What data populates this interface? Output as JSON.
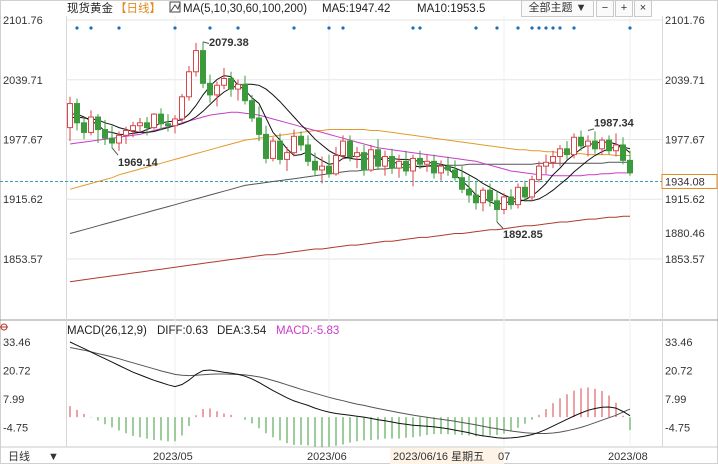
{
  "header": {
    "title": "现货黄金",
    "period": "【日线】",
    "ma_label": "MA(5,10,30,60,100,200)",
    "ma5": "MA5:1947.42",
    "ma10": "MA10:1953.5",
    "theme_button": "全部主题",
    "theme_arrow": "▼"
  },
  "macd_header": {
    "label": "MACD(26,12,9)",
    "diff": "DIFF:0.63",
    "dea": "DEA:3.54",
    "macd": "MACD:-5.83"
  },
  "footer": {
    "period": "日线",
    "cursor_date": "2023/06/16 星期五"
  },
  "colors": {
    "up": "#d9464a",
    "down": "#3b9a3b",
    "ma5": "#111111",
    "ma10": "#111111",
    "ma30": "#c93cc9",
    "ma60": "#e39a2a",
    "ma100": "#555555",
    "ma200": "#b03a2e",
    "dash": "#3aa0b0",
    "current": "#e08a1e",
    "grid": "#e5e5e5"
  },
  "chart_data": [
    {
      "type": "candlestick",
      "name": "price",
      "ylim": [
        1853.57,
        2101.76
      ],
      "yticks": [
        "2101.76",
        "2039.71",
        "1977.67",
        "1915.62",
        "1853.57"
      ],
      "xticks": [
        "2023/05",
        "2023/06",
        "07",
        "2023/08"
      ],
      "current_price": "1934.08",
      "ma200_value": "1880.46",
      "annotations": {
        "high": "2079.38",
        "low1": "1969.14",
        "low2": "1892.85",
        "high2": "1987.34"
      },
      "ohlc": [
        [
          1990,
          2022,
          1976,
          2015
        ],
        [
          2015,
          2020,
          1987,
          1995
        ],
        [
          1995,
          2001,
          1978,
          1985
        ],
        [
          1985,
          2008,
          1982,
          2001
        ],
        [
          2001,
          2004,
          1974,
          1988
        ],
        [
          1988,
          1998,
          1972,
          1979
        ],
        [
          1979,
          1992,
          1969,
          1974
        ],
        [
          1974,
          1986,
          1966,
          1982
        ],
        [
          1982,
          1991,
          1973,
          1987
        ],
        [
          1987,
          1996,
          1980,
          1992
        ],
        [
          1992,
          2000,
          1986,
          1995
        ],
        [
          1995,
          2001,
          1982,
          1990
        ],
        [
          1990,
          2005,
          1988,
          2004
        ],
        [
          2004,
          2010,
          1987,
          1994
        ],
        [
          1994,
          2004,
          1986,
          1992
        ],
        [
          1992,
          2003,
          1984,
          1999
        ],
        [
          1999,
          2025,
          1996,
          2022
        ],
        [
          2022,
          2054,
          2018,
          2048
        ],
        [
          2048,
          2078,
          2043,
          2070
        ],
        [
          2070,
          2079,
          2031,
          2036
        ],
        [
          2036,
          2045,
          2016,
          2024
        ],
        [
          2024,
          2038,
          2012,
          2034
        ],
        [
          2034,
          2052,
          2030,
          2041
        ],
        [
          2041,
          2048,
          2022,
          2030
        ],
        [
          2030,
          2040,
          2018,
          2035
        ],
        [
          2035,
          2044,
          2014,
          2018
        ],
        [
          2018,
          2024,
          1996,
          2000
        ],
        [
          2000,
          2012,
          1976,
          1983
        ],
        [
          1983,
          1992,
          1953,
          1958
        ],
        [
          1958,
          1980,
          1955,
          1976
        ],
        [
          1976,
          1984,
          1952,
          1957
        ],
        [
          1957,
          1970,
          1945,
          1964
        ],
        [
          1964,
          1988,
          1960,
          1981
        ],
        [
          1981,
          1986,
          1966,
          1972
        ],
        [
          1972,
          1982,
          1950,
          1955
        ],
        [
          1955,
          1964,
          1940,
          1946
        ],
        [
          1946,
          1960,
          1932,
          1950
        ],
        [
          1950,
          1962,
          1938,
          1942
        ],
        [
          1942,
          1970,
          1940,
          1961
        ],
        [
          1961,
          1982,
          1957,
          1976
        ],
        [
          1976,
          1982,
          1955,
          1960
        ],
        [
          1960,
          1970,
          1948,
          1964
        ],
        [
          1964,
          1972,
          1940,
          1946
        ],
        [
          1946,
          1972,
          1944,
          1967
        ],
        [
          1967,
          1978,
          1946,
          1950
        ],
        [
          1950,
          1966,
          1940,
          1960
        ],
        [
          1960,
          1968,
          1942,
          1948
        ],
        [
          1948,
          1962,
          1938,
          1955
        ],
        [
          1955,
          1966,
          1940,
          1945
        ],
        [
          1945,
          1962,
          1929,
          1958
        ],
        [
          1958,
          1966,
          1947,
          1952
        ],
        [
          1952,
          1962,
          1944,
          1955
        ],
        [
          1955,
          1962,
          1937,
          1943
        ],
        [
          1943,
          1956,
          1935,
          1950
        ],
        [
          1950,
          1960,
          1940,
          1946
        ],
        [
          1946,
          1956,
          1935,
          1938
        ],
        [
          1938,
          1950,
          1922,
          1926
        ],
        [
          1926,
          1940,
          1912,
          1920
        ],
        [
          1920,
          1934,
          1905,
          1912
        ],
        [
          1912,
          1928,
          1903,
          1925
        ],
        [
          1925,
          1932,
          1908,
          1914
        ],
        [
          1914,
          1924,
          1892,
          1905
        ],
        [
          1905,
          1922,
          1900,
          1918
        ],
        [
          1918,
          1926,
          1905,
          1910
        ],
        [
          1910,
          1932,
          1906,
          1928
        ],
        [
          1928,
          1935,
          1913,
          1918
        ],
        [
          1918,
          1940,
          1914,
          1936
        ],
        [
          1936,
          1955,
          1933,
          1950
        ],
        [
          1950,
          1962,
          1942,
          1954
        ],
        [
          1954,
          1966,
          1948,
          1960
        ],
        [
          1960,
          1972,
          1950,
          1968
        ],
        [
          1968,
          1976,
          1957,
          1962
        ],
        [
          1962,
          1984,
          1958,
          1980
        ],
        [
          1980,
          1987,
          1966,
          1971
        ],
        [
          1971,
          1982,
          1960,
          1976
        ],
        [
          1976,
          1986,
          1963,
          1968
        ],
        [
          1968,
          1980,
          1962,
          1977
        ],
        [
          1977,
          1982,
          1962,
          1966
        ],
        [
          1966,
          1984,
          1960,
          1972
        ],
        [
          1972,
          1980,
          1952,
          1956
        ],
        [
          1956,
          1966,
          1940,
          1943
        ]
      ],
      "ma5": [
        2004,
        2004,
        2001,
        1997,
        1993,
        1986,
        1985,
        1983,
        1983,
        1984,
        1985,
        1988,
        1991,
        1995,
        1996,
        1997,
        1998,
        2004,
        2013,
        2024,
        2033,
        2040,
        2044,
        2043,
        2034,
        2029,
        2021,
        2015,
        2000,
        1985,
        1977,
        1968,
        1961,
        1962,
        1965,
        1960,
        1956,
        1952,
        1953,
        1958,
        1959,
        1961,
        1962,
        1963,
        1958,
        1956,
        1955,
        1952,
        1952,
        1951,
        1949,
        1950,
        1951,
        1949,
        1947,
        1941,
        1935,
        1928,
        1920,
        1917,
        1913,
        1910,
        1912,
        1913,
        1913,
        1915,
        1919,
        1925,
        1932,
        1941,
        1948,
        1956,
        1962,
        1968,
        1972,
        1974,
        1975,
        1975,
        1973,
        1970,
        1964
      ],
      "ma10": [
        2000,
        2001,
        2000,
        1999,
        1998,
        1995,
        1993,
        1990,
        1988,
        1986,
        1985,
        1985,
        1986,
        1988,
        1990,
        1992,
        1994,
        1997,
        2001,
        2007,
        2014,
        2021,
        2027,
        2031,
        2034,
        2035,
        2035,
        2034,
        2030,
        2024,
        2017,
        2009,
        2001,
        1993,
        1986,
        1978,
        1972,
        1966,
        1962,
        1960,
        1958,
        1957,
        1957,
        1958,
        1959,
        1958,
        1958,
        1957,
        1957,
        1956,
        1955,
        1954,
        1953,
        1952,
        1950,
        1948,
        1945,
        1941,
        1937,
        1932,
        1928,
        1924,
        1920,
        1917,
        1915,
        1914,
        1914,
        1916,
        1920,
        1925,
        1931,
        1937,
        1944,
        1950,
        1956,
        1961,
        1965,
        1968,
        1970,
        1970,
        1968
      ],
      "ma30": [
        1973,
        1974,
        1975,
        1976,
        1977,
        1978,
        1979,
        1980,
        1981,
        1982,
        1983,
        1985,
        1987,
        1989,
        1991,
        1993,
        1995,
        1997,
        1999,
        2001,
        2003,
        2004,
        2005,
        2006,
        2006,
        2005,
        2004,
        2003,
        2001,
        1999,
        1997,
        1995,
        1993,
        1991,
        1989,
        1987,
        1985,
        1983,
        1981,
        1979,
        1977,
        1975,
        1973,
        1971,
        1969,
        1968,
        1967,
        1966,
        1965,
        1964,
        1963,
        1962,
        1961,
        1960,
        1959,
        1958,
        1957,
        1956,
        1955,
        1953,
        1951,
        1949,
        1947,
        1945,
        1944,
        1943,
        1942,
        1941,
        1941,
        1940,
        1940,
        1940,
        1940,
        1940,
        1941,
        1941,
        1942,
        1942,
        1943,
        1943,
        1943
      ],
      "ma60": [
        1926,
        1928,
        1930,
        1932,
        1934,
        1936,
        1938,
        1941,
        1943,
        1945,
        1947,
        1949,
        1951,
        1953,
        1955,
        1957,
        1959,
        1961,
        1963,
        1965,
        1967,
        1969,
        1971,
        1973,
        1975,
        1977,
        1978,
        1979,
        1980,
        1981,
        1982,
        1983,
        1984,
        1985,
        1986,
        1987,
        1987,
        1988,
        1988,
        1988,
        1988,
        1988,
        1988,
        1987,
        1987,
        1986,
        1985,
        1984,
        1983,
        1982,
        1981,
        1980,
        1979,
        1978,
        1977,
        1976,
        1975,
        1974,
        1973,
        1972,
        1971,
        1970,
        1969,
        1968,
        1967,
        1967,
        1966,
        1966,
        1965,
        1965,
        1964,
        1964,
        1963,
        1963,
        1962,
        1962,
        1962,
        1962,
        1961,
        1961,
        1961
      ],
      "ma100": [
        1880,
        1882,
        1884,
        1886,
        1888,
        1890,
        1892,
        1894,
        1896,
        1898,
        1900,
        1902,
        1904,
        1906,
        1908,
        1910,
        1912,
        1914,
        1916,
        1918,
        1920,
        1922,
        1924,
        1926,
        1928,
        1930,
        1931,
        1932,
        1933,
        1934,
        1935,
        1936,
        1937,
        1938,
        1939,
        1940,
        1941,
        1942,
        1943,
        1944,
        1945,
        1945,
        1946,
        1946,
        1947,
        1947,
        1948,
        1948,
        1949,
        1949,
        1950,
        1950,
        1950,
        1951,
        1951,
        1951,
        1951,
        1952,
        1952,
        1952,
        1952,
        1952,
        1952,
        1952,
        1952,
        1952,
        1952,
        1953,
        1953,
        1953,
        1953,
        1953,
        1953,
        1953,
        1953,
        1953,
        1953,
        1954,
        1954,
        1954,
        1954
      ],
      "ma200": [
        1830,
        1831,
        1832,
        1833,
        1834,
        1835,
        1836,
        1837,
        1838,
        1839,
        1840,
        1841,
        1842,
        1843,
        1844,
        1845,
        1846,
        1847,
        1848,
        1849,
        1850,
        1851,
        1852,
        1853,
        1854,
        1855,
        1856,
        1857,
        1858,
        1858,
        1859,
        1860,
        1861,
        1862,
        1863,
        1864,
        1864,
        1865,
        1866,
        1867,
        1868,
        1868,
        1869,
        1870,
        1871,
        1872,
        1872,
        1873,
        1874,
        1875,
        1876,
        1876,
        1877,
        1878,
        1879,
        1880,
        1880,
        1881,
        1882,
        1883,
        1884,
        1884,
        1885,
        1886,
        1887,
        1888,
        1888,
        1889,
        1890,
        1891,
        1892,
        1892,
        1893,
        1894,
        1895,
        1895,
        1896,
        1897,
        1897,
        1898,
        1898
      ]
    },
    {
      "type": "macd",
      "name": "MACD(26,12,9)",
      "ylim": [
        -12,
        33.46
      ],
      "yticks": [
        "33.46",
        "20.72",
        "7.99",
        "-4.75"
      ],
      "diff": [
        33.46,
        32,
        30.5,
        29,
        27.5,
        26,
        24.5,
        23,
        21.5,
        20,
        18.8,
        17.6,
        16.4,
        15.4,
        14.4,
        13.6,
        14.5,
        16.5,
        19,
        20.72,
        21,
        20.5,
        20,
        19.6,
        19,
        18.2,
        17,
        15.4,
        13.6,
        11.8,
        10.2,
        8.6,
        7.2,
        6.2,
        5.2,
        4,
        3,
        2.2,
        1.6,
        1.2,
        0.8,
        0.4,
        0,
        -0.6,
        -1.2,
        -1.6,
        -2.2,
        -2.8,
        -3.2,
        -3.6,
        -3.9,
        -4.1,
        -4.4,
        -4.8,
        -5.2,
        -5.8,
        -6.4,
        -7,
        -7.8,
        -8.4,
        -8.8,
        -9.2,
        -9.4,
        -9.3,
        -9,
        -8.5,
        -7.8,
        -6.8,
        -5.5,
        -4,
        -2.5,
        -1,
        0.5,
        1.8,
        3,
        3.8,
        4.4,
        4.5,
        4,
        2.5,
        0.63
      ],
      "dea": [
        31,
        30.4,
        29.8,
        29.1,
        28.3,
        27.6,
        26.8,
        26,
        25.1,
        24.2,
        23.3,
        22.4,
        21.5,
        20.6,
        19.8,
        19,
        18.6,
        18.5,
        18.6,
        18.9,
        19.1,
        19.2,
        19.2,
        19.1,
        19,
        18.8,
        18.4,
        17.9,
        17.2,
        16.3,
        15.4,
        14.4,
        13.4,
        12.4,
        11.5,
        10.6,
        9.7,
        8.8,
        8,
        7.3,
        6.5,
        5.8,
        5.2,
        4.5,
        3.8,
        3.2,
        2.6,
        2,
        1.4,
        0.9,
        0.4,
        -0.1,
        -0.6,
        -1,
        -1.4,
        -1.9,
        -2.4,
        -2.9,
        -3.5,
        -4.1,
        -4.7,
        -5.2,
        -5.7,
        -6.2,
        -6.6,
        -7,
        -7.2,
        -7.3,
        -7.3,
        -7.1,
        -6.7,
        -6.1,
        -5.4,
        -4.6,
        -3.6,
        -2.5,
        -1.4,
        -0.3,
        0.8,
        2.2,
        3.54
      ],
      "hist": [
        4.9,
        3.2,
        1.4,
        -0.2,
        -1.6,
        -3.2,
        -4.6,
        -6,
        -7.2,
        -8.4,
        -9,
        -9.6,
        -10.2,
        -10.4,
        -10.8,
        -10.8,
        -8.2,
        -4,
        0.8,
        3.6,
        3.8,
        2.6,
        1.6,
        1,
        0,
        -1.2,
        -2.8,
        -5,
        -7.2,
        -9,
        -10.4,
        -11.6,
        -12.4,
        -12.4,
        -12.6,
        -13.2,
        -13.4,
        -13.2,
        -12.8,
        -12.2,
        -11.4,
        -10.8,
        -10.4,
        -10.2,
        -10,
        -9.6,
        -9.6,
        -9.6,
        -9.2,
        -9,
        -8.6,
        -8,
        -7.6,
        -7.6,
        -7.6,
        -7.8,
        -8,
        -8.2,
        -8.6,
        -8.6,
        -8.2,
        -8,
        -7.4,
        -6.2,
        -4.8,
        -3,
        -1.2,
        1,
        3.6,
        6.2,
        8.4,
        10.2,
        11.8,
        12.8,
        13.2,
        12.6,
        11.6,
        9.6,
        6.4,
        0.6,
        -5.83
      ]
    }
  ]
}
